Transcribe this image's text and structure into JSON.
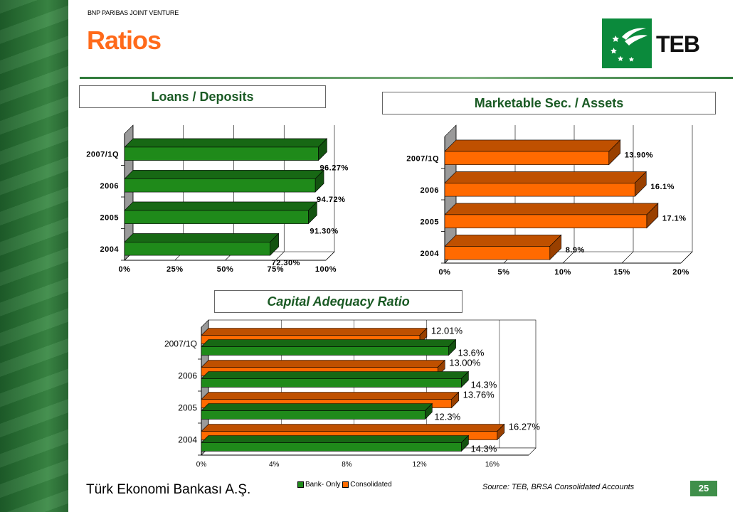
{
  "header": {
    "joint_venture": "BNP PARIBAS JOINT VENTURE",
    "title": "Ratios",
    "logo_text": "TEB"
  },
  "footer": {
    "company": "Türk Ekonomi Bankası A.Ş.",
    "source": "Source: TEB, BRSA Consolidated Accounts",
    "page_number": "25"
  },
  "colors": {
    "green": "#1f8a1a",
    "orange": "#ff6a00",
    "title_orange": "#ff6a1a",
    "brand_green": "#0b8a3c"
  },
  "chart_data": [
    {
      "type": "bar",
      "orientation": "horizontal",
      "title": "Loans / Deposits",
      "categories": [
        "2004",
        "2005",
        "2006",
        "2007/1Q"
      ],
      "values": [
        72.3,
        91.3,
        94.72,
        96.27
      ],
      "value_labels": [
        "72.30%",
        "91.30%",
        "94.72%",
        "96.27%"
      ],
      "xticks": [
        "0%",
        "25%",
        "50%",
        "75%",
        "100%"
      ],
      "xlim": [
        0,
        100
      ],
      "color": "#1f8a1a",
      "grid": true
    },
    {
      "type": "bar",
      "orientation": "horizontal",
      "title": "Marketable Sec. / Assets",
      "categories": [
        "2004",
        "2005",
        "2006",
        "2007/1Q"
      ],
      "values": [
        8.9,
        17.1,
        16.1,
        13.9
      ],
      "value_labels": [
        "8.9%",
        "17.1%",
        "16.1%",
        "13.90%"
      ],
      "xticks": [
        "0%",
        "5%",
        "10%",
        "15%",
        "20%"
      ],
      "xlim": [
        0,
        20
      ],
      "color": "#ff6a00",
      "grid": true
    },
    {
      "type": "bar",
      "orientation": "horizontal",
      "title": "Capital Adequacy Ratio",
      "categories": [
        "2004",
        "2005",
        "2006",
        "2007/1Q"
      ],
      "series": [
        {
          "name": "Bank- Only",
          "values": [
            14.3,
            12.3,
            14.3,
            13.6
          ],
          "labels": [
            "14.3%",
            "12.3%",
            "14.3%",
            "13.6%"
          ],
          "color": "#1f8a1a"
        },
        {
          "name": "Consolidated",
          "values": [
            16.27,
            13.76,
            13.0,
            12.01
          ],
          "labels": [
            "16.27%",
            "13.76%",
            "13.00%",
            "12.01%"
          ],
          "color": "#ff6a00"
        }
      ],
      "xticks": [
        "0%",
        "4%",
        "8%",
        "12%",
        "16%"
      ],
      "xlim": [
        0,
        18
      ],
      "legend": "bottom",
      "grid": true
    }
  ]
}
